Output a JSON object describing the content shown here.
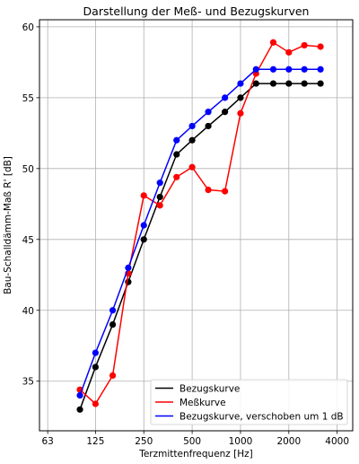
{
  "chart_data": {
    "type": "line",
    "title": "Darstellung der Meß- und Bezugskurven",
    "xlabel": "Terzmittenfrequenz [Hz]",
    "ylabel": "Bau-Schalldämm-Maß R' [dB]",
    "xscale": "log2",
    "xlim": [
      56,
      5000
    ],
    "ylim": [
      31.5,
      60.5
    ],
    "xticks": [
      63,
      125,
      250,
      500,
      1000,
      2000,
      4000
    ],
    "xtick_labels": [
      "63",
      "125",
      "250",
      "500",
      "1000",
      "2000",
      "4000"
    ],
    "yticks": [
      35,
      40,
      45,
      50,
      55,
      60
    ],
    "ytick_labels": [
      "35",
      "40",
      "45",
      "50",
      "55",
      "60"
    ],
    "grid": true,
    "legend_position": "lower-right",
    "x": [
      100,
      125,
      160,
      200,
      250,
      315,
      400,
      500,
      630,
      800,
      1000,
      1250,
      1600,
      2000,
      2500,
      3150
    ],
    "series": [
      {
        "name": "Bezugskurve",
        "color": "#000000",
        "values": [
          33,
          36,
          39,
          42,
          45,
          48,
          51,
          52,
          53,
          54,
          55,
          56,
          56,
          56,
          56,
          56
        ]
      },
      {
        "name": "Meßkurve",
        "color": "#ff0000",
        "values": [
          34.4,
          33.4,
          35.4,
          42.6,
          48.1,
          47.4,
          49.4,
          50.1,
          48.5,
          48.4,
          53.9,
          56.7,
          58.9,
          58.2,
          58.7,
          58.6
        ]
      },
      {
        "name": "Bezugskurve, verschoben um 1 dB",
        "color": "#0000ff",
        "values": [
          34,
          37,
          40,
          43,
          46,
          49,
          52,
          53,
          54,
          55,
          56,
          57,
          57,
          57,
          57,
          57
        ]
      }
    ]
  }
}
